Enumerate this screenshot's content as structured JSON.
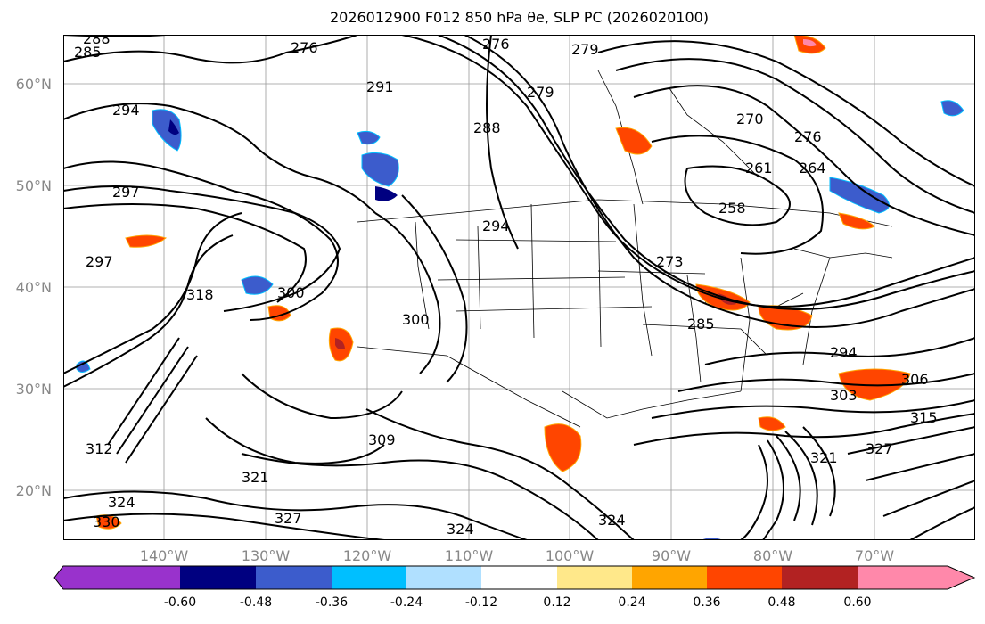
{
  "title": "2026012900 F012 850 hPa θe, SLP PC (2026020100)",
  "lat_labels": [
    "60°N",
    "50°N",
    "40°N",
    "30°N",
    "20°N"
  ],
  "lon_labels": [
    "140°W",
    "130°W",
    "120°W",
    "110°W",
    "100°W",
    "90°W",
    "80°W",
    "70°W"
  ],
  "contour_labels": [
    "288",
    "285",
    "276",
    "276",
    "279",
    "291",
    "294",
    "297",
    "297",
    "288",
    "279",
    "270",
    "276",
    "261",
    "264",
    "258",
    "294",
    "273",
    "285",
    "300",
    "300",
    "318",
    "294",
    "303",
    "306",
    "309",
    "321",
    "327",
    "324",
    "324",
    "321",
    "327",
    "324",
    "315",
    "330",
    "312"
  ],
  "colorbar": {
    "ticks": [
      "-0.60",
      "-0.48",
      "-0.36",
      "-0.24",
      "-0.12",
      "0.12",
      "0.24",
      "0.36",
      "0.48",
      "0.60"
    ],
    "colors": [
      "#9932CC",
      "#000080",
      "#3C5CCC",
      "#00BFFF",
      "#B0E0FF",
      "#FFFFFF",
      "#FFE88A",
      "#FFA500",
      "#FF4500",
      "#B22222",
      "#FF88AA"
    ]
  }
}
